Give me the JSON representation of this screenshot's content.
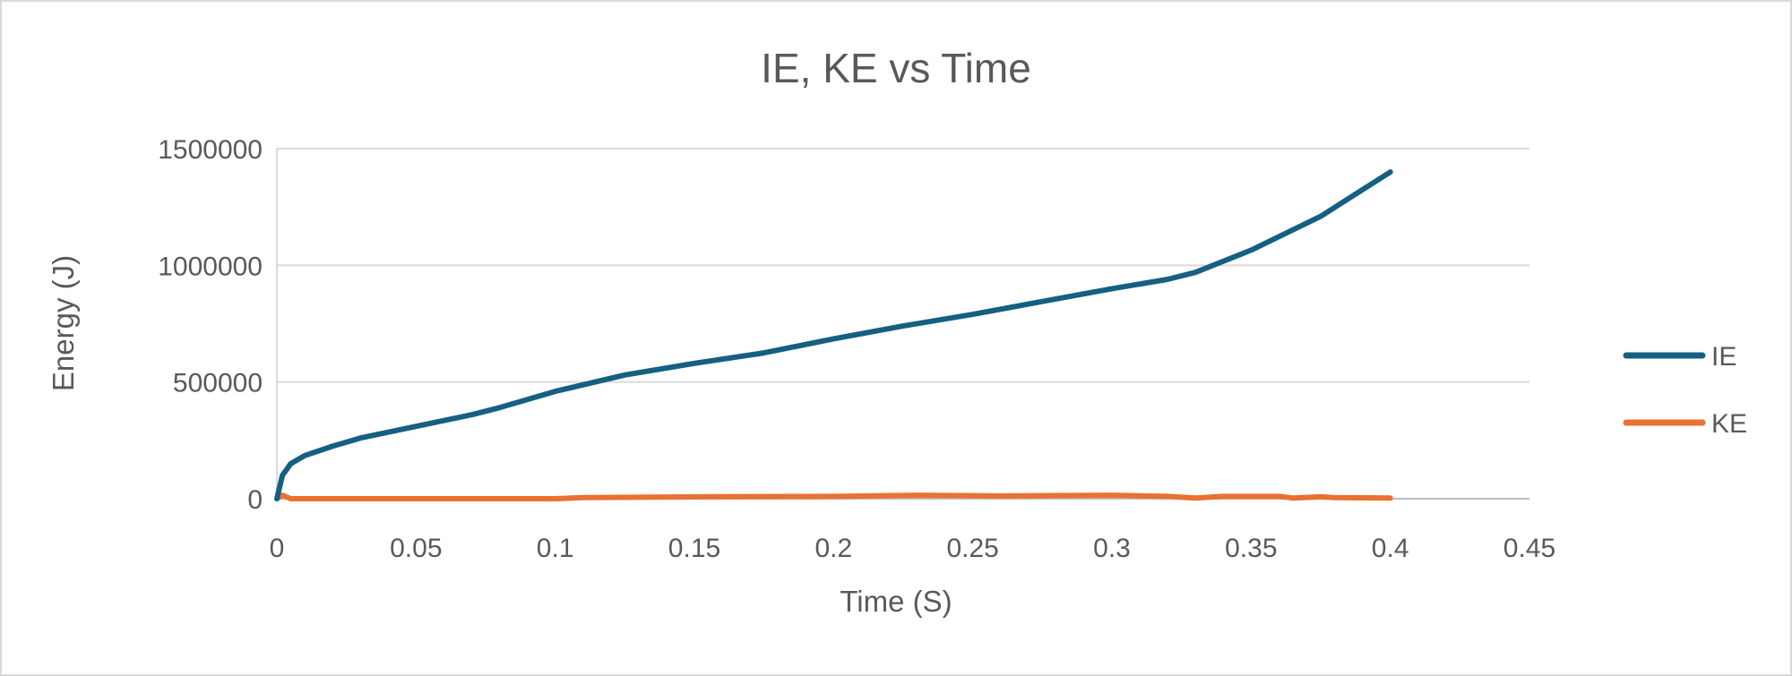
{
  "chart_data": {
    "type": "line",
    "title": "IE, KE vs Time",
    "xlabel": "Time (S)",
    "ylabel": "Energy (J)",
    "xlim": [
      0,
      0.45
    ],
    "ylim": [
      0,
      1500000
    ],
    "xticks": [
      0,
      0.05,
      0.1,
      0.15,
      0.2,
      0.25,
      0.3,
      0.35,
      0.4,
      0.45
    ],
    "xtick_labels": [
      "0",
      "0.05",
      "0.1",
      "0.15",
      "0.2",
      "0.25",
      "0.3",
      "0.35",
      "0.4",
      "0.45"
    ],
    "yticks": [
      0,
      500000,
      1000000,
      1500000
    ],
    "ytick_labels": [
      "0",
      "500000",
      "1000000",
      "1500000"
    ],
    "grid": "horizontal",
    "legend_position": "right",
    "series": [
      {
        "name": "IE",
        "color": "#156082",
        "x": [
          0,
          0.002,
          0.005,
          0.01,
          0.02,
          0.03,
          0.05,
          0.07,
          0.08,
          0.1,
          0.125,
          0.15,
          0.175,
          0.2,
          0.225,
          0.25,
          0.275,
          0.3,
          0.32,
          0.33,
          0.35,
          0.375,
          0.4
        ],
        "y": [
          0,
          100000,
          150000,
          185000,
          225000,
          260000,
          310000,
          360000,
          390000,
          460000,
          530000,
          580000,
          625000,
          685000,
          740000,
          790000,
          845000,
          900000,
          940000,
          970000,
          1065000,
          1210000,
          1400000
        ]
      },
      {
        "name": "KE",
        "color": "#E97132",
        "x": [
          0,
          0.002,
          0.005,
          0.1,
          0.11,
          0.15,
          0.2,
          0.23,
          0.26,
          0.3,
          0.32,
          0.33,
          0.34,
          0.36,
          0.365,
          0.375,
          0.38,
          0.4
        ],
        "y": [
          0,
          15000,
          0,
          0,
          5000,
          8000,
          10000,
          15000,
          12000,
          15000,
          10000,
          3000,
          10000,
          10000,
          3000,
          8000,
          5000,
          3000
        ]
      }
    ]
  }
}
